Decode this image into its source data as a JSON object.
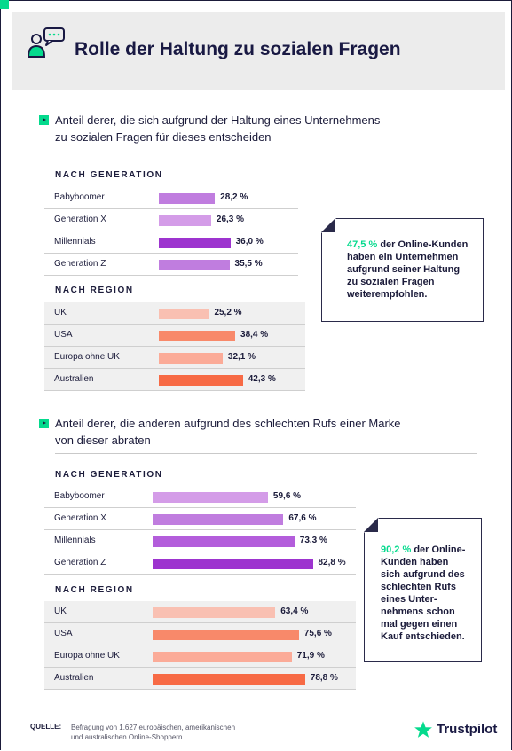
{
  "header": {
    "title": "Rolle der Haltung zu sozialen Fragen"
  },
  "sections": [
    {
      "question_line1": "Anteil derer, die sich aufgrund der Haltung eines Unternehmens",
      "question_line2": "zu sozialen Fragen für dieses entscheiden",
      "note": {
        "highlight": "47,5 %",
        "text_lines": [
          "der Online-Kunden",
          "haben ein Unternehmen",
          "aufgrund seiner Haltung",
          "zu sozialen Fragen",
          "weiterempfohlen."
        ]
      }
    },
    {
      "question_line1": "Anteil derer, die anderen aufgrund des schlechten Rufs einer Marke",
      "question_line2": "von dieser abraten",
      "note": {
        "highlight": "90,2 %",
        "text_lines": [
          "der Online-",
          "Kunden haben",
          "sich aufgrund des",
          "schlechten Rufs",
          "eines Unter-",
          "nehmens schon",
          "mal gegen einen",
          "Kauf entschieden."
        ]
      }
    }
  ],
  "chart_data": [
    {
      "type": "bar",
      "orientation": "horizontal",
      "title": "Anteil derer, die sich aufgrund der Haltung eines Unternehmens zu sozialen Fragen für dieses entscheiden",
      "groups": [
        {
          "name": "NACH GENERATION",
          "categories": [
            "Babyboomer",
            "Generation X",
            "Millennials",
            "Generation Z"
          ],
          "values": [
            28.2,
            26.3,
            36.0,
            35.5
          ],
          "labels": [
            "28,2 %",
            "26,3 %",
            "36,0 %",
            "35,5 %"
          ],
          "colors": [
            "#c07ddf",
            "#d49ce8",
            "#9d34cf",
            "#c07ddf"
          ]
        },
        {
          "name": "NACH REGION",
          "categories": [
            "UK",
            "USA",
            "Europa ohne UK",
            "Australien"
          ],
          "values": [
            25.2,
            38.4,
            32.1,
            42.3
          ],
          "labels": [
            "25,2 %",
            "38,4 %",
            "32,1 %",
            "42,3 %"
          ],
          "colors": [
            "#f9c0b2",
            "#f8896a",
            "#fbab98",
            "#f76a45"
          ]
        }
      ],
      "xlim": [
        0,
        100
      ]
    },
    {
      "type": "bar",
      "orientation": "horizontal",
      "title": "Anteil derer, die anderen aufgrund des schlechten Rufs einer Marke von dieser abraten",
      "groups": [
        {
          "name": "NACH GENERATION",
          "categories": [
            "Babyboomer",
            "Generation X",
            "Millennials",
            "Generation Z"
          ],
          "values": [
            59.6,
            67.6,
            73.3,
            82.8
          ],
          "labels": [
            "59,6 %",
            "67,6 %",
            "73,3 %",
            "82,8 %"
          ],
          "colors": [
            "#d49ce8",
            "#c07ddf",
            "#b35ddb",
            "#9d34cf"
          ]
        },
        {
          "name": "NACH REGION",
          "categories": [
            "UK",
            "USA",
            "Europa ohne UK",
            "Australien"
          ],
          "values": [
            63.4,
            75.6,
            71.9,
            78.8
          ],
          "labels": [
            "63,4 %",
            "75,6 %",
            "71,9 %",
            "78,8 %"
          ],
          "colors": [
            "#f9c0b2",
            "#f8896a",
            "#fbab98",
            "#f76a45"
          ]
        }
      ],
      "xlim": [
        0,
        100
      ]
    }
  ],
  "footer": {
    "source_label": "QUELLE:",
    "source_line1": "Befragung von 1.627 europäischen, amerikanischen",
    "source_line2": "und australischen Online-Shoppern",
    "brand": "Trustpilot"
  },
  "colors": {
    "accent": "#04da8d",
    "navy": "#191943"
  }
}
